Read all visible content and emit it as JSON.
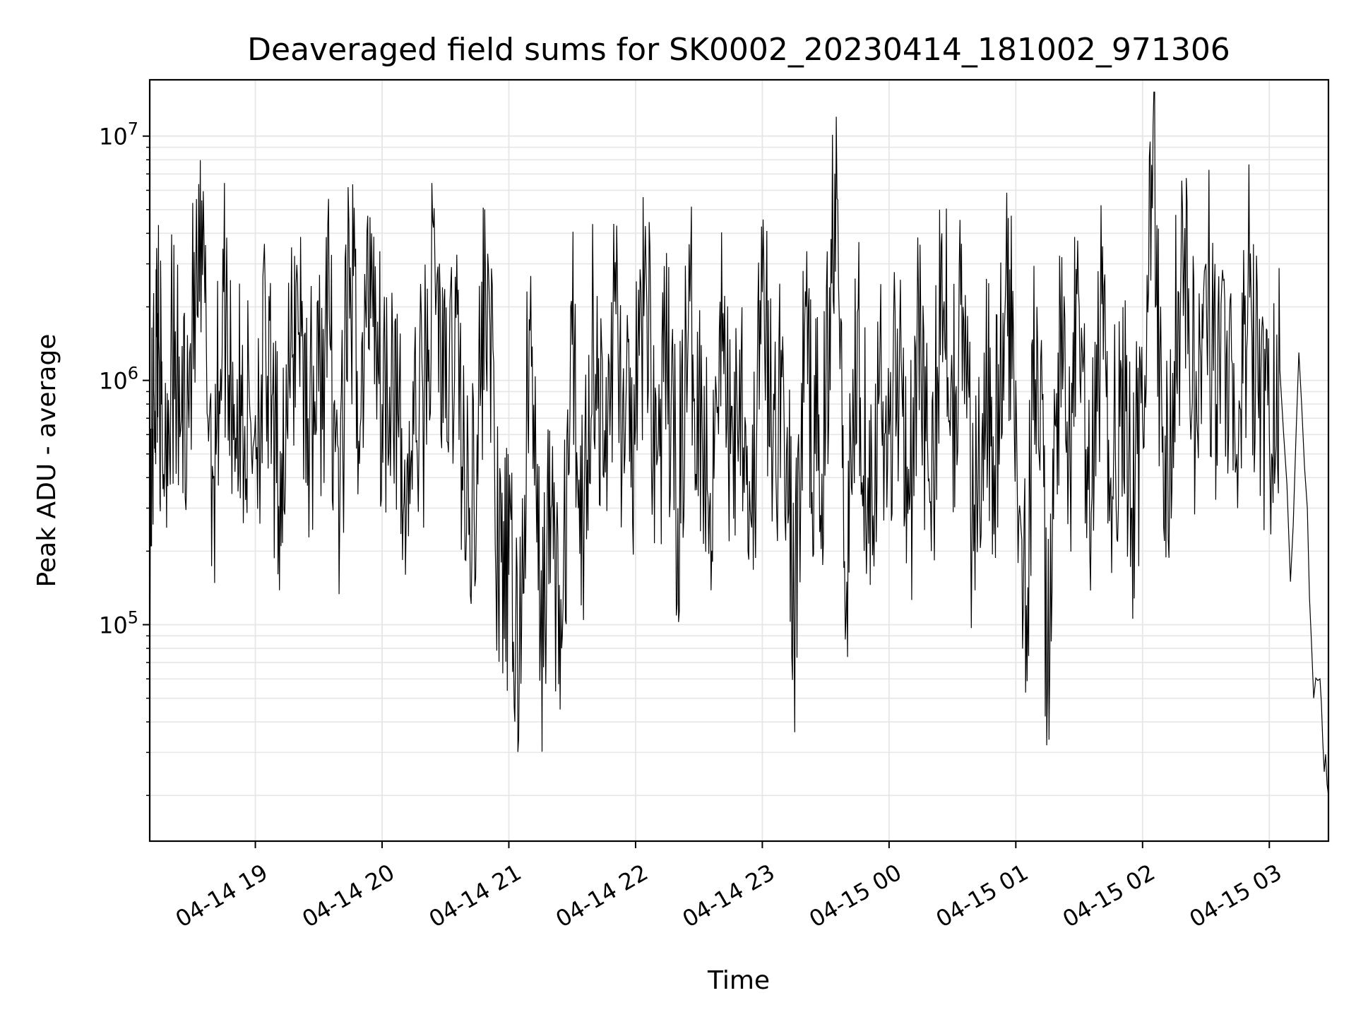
{
  "chart_data": {
    "type": "line",
    "title": "Deaveraged field sums for SK0002_20230414_181002_971306",
    "xlabel": "Time",
    "ylabel": "Peak ADU - average",
    "yscale": "log",
    "ylim": [
      13000,
      17000000
    ],
    "xlim": [
      "2023-04-14 18:10",
      "2023-04-15 03:28"
    ],
    "grid": true,
    "line_color": "#000000",
    "grid_color": "#e6e6e6",
    "x_ticks": [
      {
        "value": "2023-04-14 19:00",
        "label": "04-14 19"
      },
      {
        "value": "2023-04-14 20:00",
        "label": "04-14 20"
      },
      {
        "value": "2023-04-14 21:00",
        "label": "04-14 21"
      },
      {
        "value": "2023-04-14 22:00",
        "label": "04-14 22"
      },
      {
        "value": "2023-04-14 23:00",
        "label": "04-14 23"
      },
      {
        "value": "2023-04-15 00:00",
        "label": "04-15 00"
      },
      {
        "value": "2023-04-15 01:00",
        "label": "04-15 01"
      },
      {
        "value": "2023-04-15 02:00",
        "label": "04-15 02"
      },
      {
        "value": "2023-04-15 03:00",
        "label": "04-15 03"
      }
    ],
    "y_ticks": [
      {
        "value": 100000,
        "base": "10",
        "exp": "5"
      },
      {
        "value": 1000000,
        "base": "10",
        "exp": "6"
      },
      {
        "value": 10000000,
        "base": "10",
        "exp": "7"
      }
    ],
    "series": [
      {
        "x": [
          "2023-04-14 18:10",
          "2023-04-14 18:12",
          "2023-04-14 18:14",
          "2023-04-14 18:16",
          "2023-04-14 18:20",
          "2023-04-14 18:25",
          "2023-04-14 18:30",
          "2023-04-14 18:35",
          "2023-04-14 18:40",
          "2023-04-14 18:45",
          "2023-04-14 18:50",
          "2023-04-14 18:55",
          "2023-04-14 19:00",
          "2023-04-14 19:05",
          "2023-04-14 19:10",
          "2023-04-14 19:15",
          "2023-04-14 19:20",
          "2023-04-14 19:25",
          "2023-04-14 19:30",
          "2023-04-14 19:35",
          "2023-04-14 19:40",
          "2023-04-14 19:45",
          "2023-04-14 19:50",
          "2023-04-14 19:55",
          "2023-04-14 20:00",
          "2023-04-14 20:05",
          "2023-04-14 20:10",
          "2023-04-14 20:15",
          "2023-04-14 20:20",
          "2023-04-14 20:25",
          "2023-04-14 20:30",
          "2023-04-14 20:35",
          "2023-04-14 20:40",
          "2023-04-14 20:45",
          "2023-04-14 20:50",
          "2023-04-14 20:55",
          "2023-04-14 21:00",
          "2023-04-14 21:05",
          "2023-04-14 21:10",
          "2023-04-14 21:15",
          "2023-04-14 21:20",
          "2023-04-14 21:25",
          "2023-04-14 21:30",
          "2023-04-14 21:35",
          "2023-04-14 21:40",
          "2023-04-14 21:45",
          "2023-04-14 21:50",
          "2023-04-14 21:55",
          "2023-04-14 22:00",
          "2023-04-14 22:05",
          "2023-04-14 22:10",
          "2023-04-14 22:15",
          "2023-04-14 22:20",
          "2023-04-14 22:25",
          "2023-04-14 22:30",
          "2023-04-14 22:35",
          "2023-04-14 22:40",
          "2023-04-14 22:45",
          "2023-04-14 22:50",
          "2023-04-14 22:55",
          "2023-04-14 23:00",
          "2023-04-14 23:05",
          "2023-04-14 23:10",
          "2023-04-14 23:15",
          "2023-04-14 23:20",
          "2023-04-14 23:25",
          "2023-04-14 23:30",
          "2023-04-14 23:35",
          "2023-04-14 23:40",
          "2023-04-14 23:45",
          "2023-04-14 23:50",
          "2023-04-14 23:55",
          "2023-04-15 00:00",
          "2023-04-15 00:05",
          "2023-04-15 00:10",
          "2023-04-15 00:15",
          "2023-04-15 00:20",
          "2023-04-15 00:25",
          "2023-04-15 00:30",
          "2023-04-15 00:35",
          "2023-04-15 00:40",
          "2023-04-15 00:45",
          "2023-04-15 00:50",
          "2023-04-15 00:55",
          "2023-04-15 01:00",
          "2023-04-15 01:05",
          "2023-04-15 01:10",
          "2023-04-15 01:15",
          "2023-04-15 01:20",
          "2023-04-15 01:25",
          "2023-04-15 01:30",
          "2023-04-15 01:35",
          "2023-04-15 01:40",
          "2023-04-15 01:45",
          "2023-04-15 01:50",
          "2023-04-15 01:55",
          "2023-04-15 02:00",
          "2023-04-15 02:05",
          "2023-04-15 02:10",
          "2023-04-15 02:15",
          "2023-04-15 02:20",
          "2023-04-15 02:25",
          "2023-04-15 02:30",
          "2023-04-15 02:35",
          "2023-04-15 02:40",
          "2023-04-15 02:45",
          "2023-04-15 02:50",
          "2023-04-15 02:55",
          "2023-04-15 03:00",
          "2023-04-15 03:05",
          "2023-04-15 03:10",
          "2023-04-15 03:14",
          "2023-04-15 03:18",
          "2023-04-15 03:21",
          "2023-04-15 03:24",
          "2023-04-15 03:26",
          "2023-04-15 03:28"
        ],
        "y": [
          270000,
          900000,
          1900000,
          500000,
          1200000,
          700000,
          1500000,
          2700000,
          400000,
          2300000,
          800000,
          650000,
          720000,
          1200000,
          380000,
          650000,
          2500000,
          700000,
          900000,
          1800000,
          300000,
          2900000,
          700000,
          4000000,
          800000,
          1500000,
          280000,
          600000,
          900000,
          3100000,
          700000,
          1800000,
          250000,
          600000,
          3300000,
          150000,
          160000,
          70000,
          1600000,
          90000,
          300000,
          80000,
          1400000,
          250000,
          1900000,
          400000,
          2100000,
          500000,
          650000,
          2700000,
          450000,
          1100000,
          300000,
          1700000,
          1000000,
          300000,
          2100000,
          500000,
          1300000,
          250000,
          2300000,
          500000,
          1100000,
          90000,
          1600000,
          500000,
          650000,
          12000000,
          150000,
          1900000,
          400000,
          800000,
          600000,
          1500000,
          350000,
          1900000,
          200000,
          4000000,
          900000,
          2000000,
          200000,
          1300000,
          450000,
          2100000,
          1000000,
          120000,
          2000000,
          55000,
          1300000,
          500000,
          2000000,
          200000,
          1700000,
          400000,
          1100000,
          300000,
          700000,
          11000000,
          250000,
          1200000,
          4200000,
          600000,
          3000000,
          800000,
          1600000,
          300000,
          2700000,
          700000,
          600000,
          1100000,
          150000,
          1300000,
          300000,
          50000,
          60000,
          25000,
          20000
        ]
      }
    ]
  }
}
